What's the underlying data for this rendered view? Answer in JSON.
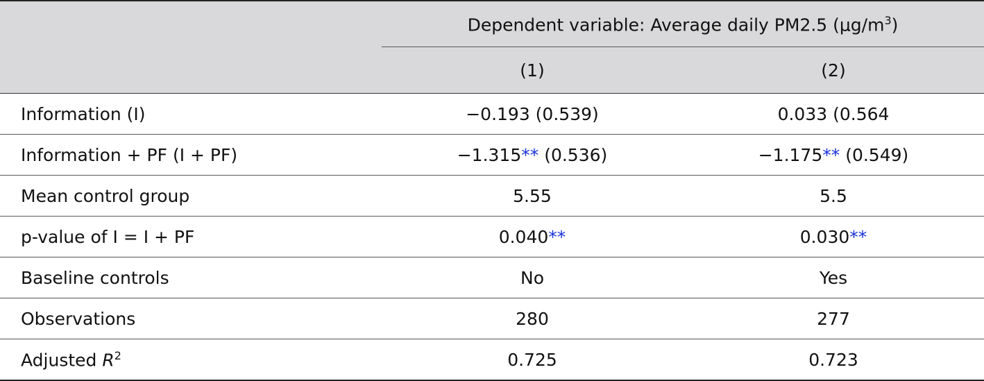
{
  "header": {
    "dependent_prefix": "Dependent variable: Average daily PM2.5 (μg/m",
    "dependent_sup": "3",
    "dependent_suffix": ")",
    "columns": [
      "(1)",
      "(2)"
    ]
  },
  "rows": [
    {
      "label": "Information (I)",
      "c1": "−0.193 (0.539)",
      "c1_stars": "",
      "c1_tail": "",
      "c2": "0.033 (0.564",
      "c2_stars": "",
      "c2_tail": ""
    },
    {
      "label": "Information + PF (I + PF)",
      "c1": "−1.315",
      "c1_stars": "**",
      "c1_tail": " (0.536)",
      "c2": "−1.175",
      "c2_stars": "**",
      "c2_tail": " (0.549)"
    },
    {
      "label": "Mean control group",
      "c1": "5.55",
      "c1_stars": "",
      "c1_tail": "",
      "c2": "5.5",
      "c2_stars": "",
      "c2_tail": ""
    },
    {
      "label": "p-value of I = I + PF",
      "c1": "0.040",
      "c1_stars": "**",
      "c1_tail": "",
      "c2": "0.030",
      "c2_stars": "**",
      "c2_tail": ""
    },
    {
      "label": "Baseline controls",
      "c1": "No",
      "c1_stars": "",
      "c1_tail": "",
      "c2": "Yes",
      "c2_stars": "",
      "c2_tail": ""
    },
    {
      "label": "Observations",
      "c1": "280",
      "c1_stars": "",
      "c1_tail": "",
      "c2": "277",
      "c2_stars": "",
      "c2_tail": ""
    }
  ],
  "last_row": {
    "label_prefix": "Adjusted ",
    "label_var": "R",
    "label_sup": "2",
    "c1": "0.725",
    "c2": "0.723"
  },
  "colors": {
    "header_bg": "#d9d9db",
    "stars": "#1a33d6"
  }
}
